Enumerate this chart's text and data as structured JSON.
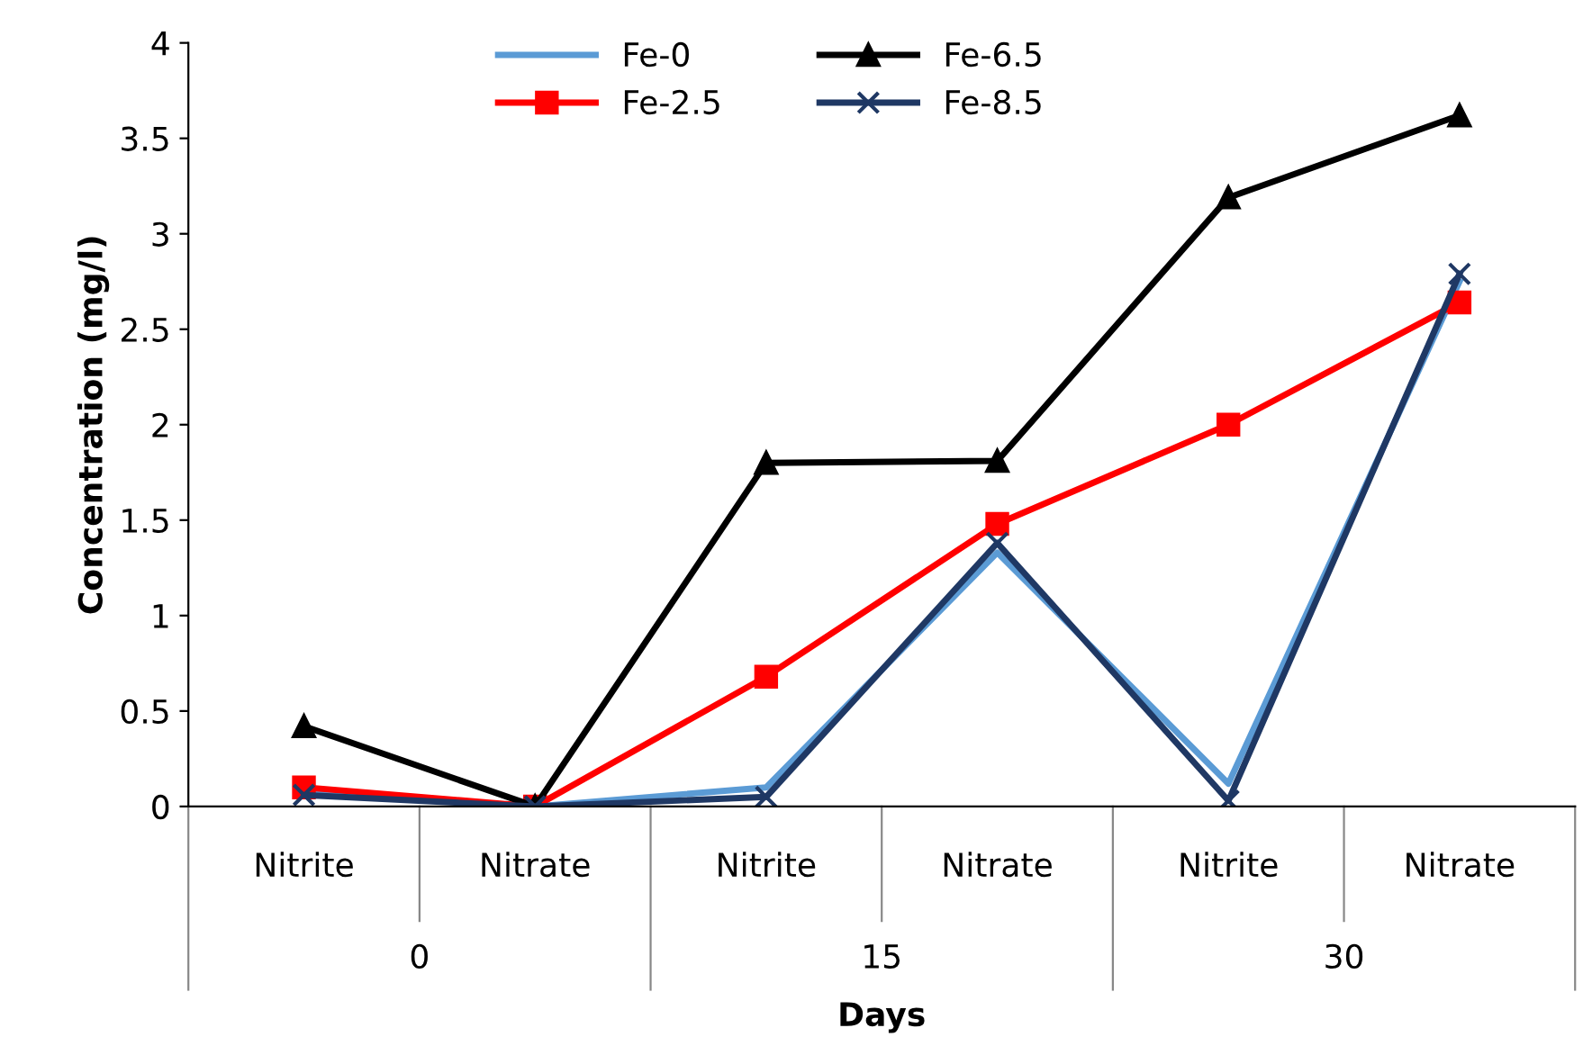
{
  "chart_data": {
    "type": "line",
    "xlabel": "Days",
    "ylabel": "Concentration (mg/l)",
    "categories": [
      "Nitrite",
      "Nitrate",
      "Nitrite",
      "Nitrate",
      "Nitrite",
      "Nitrate"
    ],
    "annotations": [
      "0",
      "15",
      "30"
    ],
    "ylim": [
      0,
      4
    ],
    "yticks": [
      0,
      0.5,
      1,
      1.5,
      2,
      2.5,
      3,
      3.5,
      4
    ],
    "grid": false,
    "legend": "top",
    "series": [
      {
        "name": "Fe-0",
        "color": "#5b9bd5",
        "marker": "none",
        "values": [
          0.08,
          0.0,
          0.1,
          1.33,
          0.12,
          2.75
        ]
      },
      {
        "name": "Fe-2.5",
        "color": "#ff0000",
        "marker": "square",
        "values": [
          0.1,
          0.0,
          0.68,
          1.48,
          2.0,
          2.64
        ]
      },
      {
        "name": "Fe-6.5",
        "color": "#000000",
        "marker": "triangle",
        "values": [
          0.42,
          0.0,
          1.8,
          1.81,
          3.19,
          3.62
        ]
      },
      {
        "name": "Fe-8.5",
        "color": "#1f3864",
        "marker": "cross",
        "values": [
          0.06,
          0.0,
          0.05,
          1.38,
          0.03,
          2.79
        ]
      }
    ]
  }
}
